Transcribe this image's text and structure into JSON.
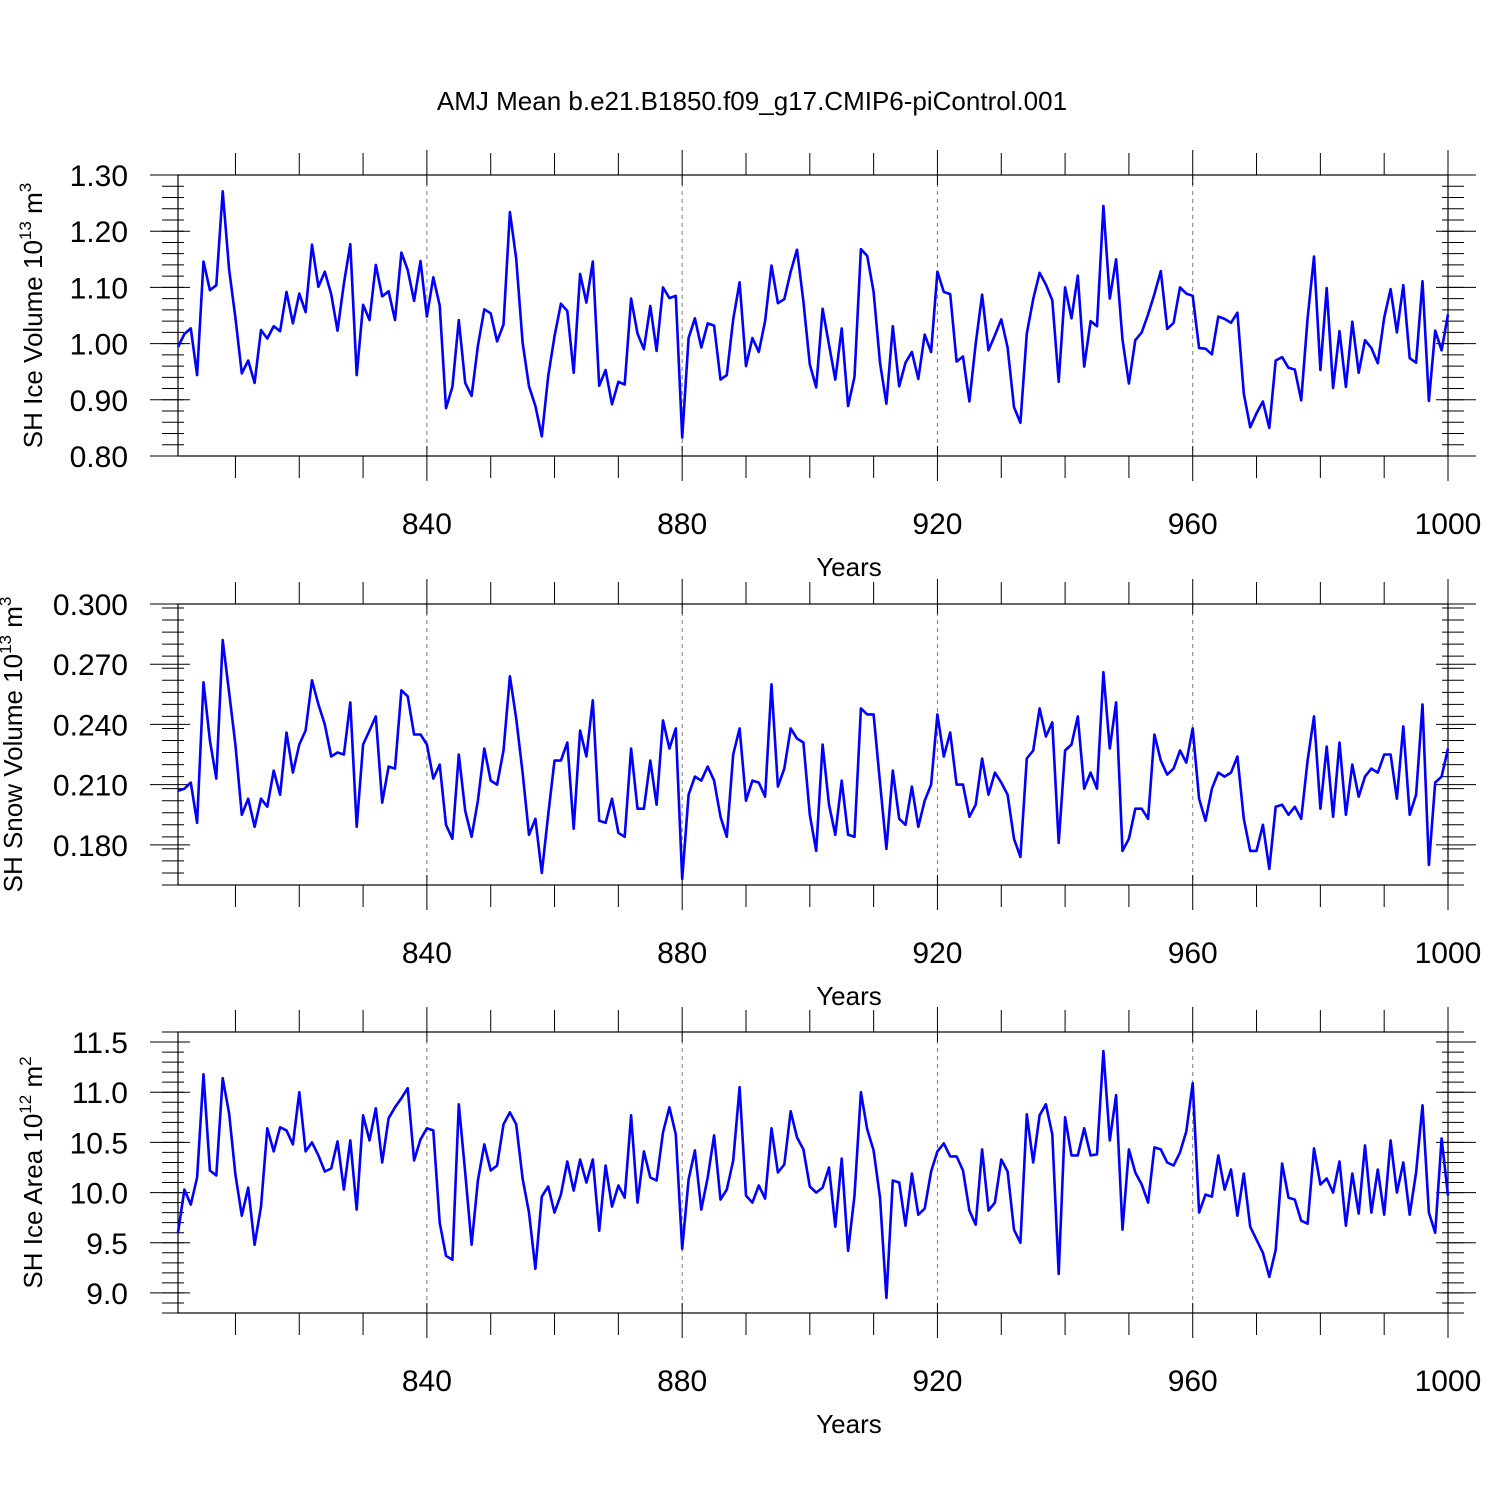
{
  "title": "AMJ Mean b.e21.B1850.f09_g17.CMIP6-piControl.001",
  "line_color": "#0000ff",
  "chart_data": [
    {
      "type": "line",
      "xlabel": "Years",
      "ylabel": "SH Ice Volume 10",
      "ylabel_exp": "13",
      "ylabel_unit": "m",
      "ylabel_unit_exp": "3",
      "xlim": [
        801,
        1000
      ],
      "ylim": [
        0.8,
        1.3
      ],
      "xticks": [
        840,
        880,
        920,
        960,
        1000
      ],
      "yticks": [
        "0.80",
        "0.90",
        "1.00",
        "1.10",
        "1.20",
        "1.30"
      ],
      "grid": "dashed vertical",
      "series": [
        {
          "x_start": 801,
          "x_step": 1,
          "values": [
            0.994,
            1.017,
            1.027,
            0.944,
            1.146,
            1.095,
            1.104,
            1.271,
            1.132,
            1.046,
            0.947,
            0.97,
            0.93,
            1.024,
            1.009,
            1.031,
            1.022,
            1.092,
            1.036,
            1.089,
            1.056,
            1.176,
            1.101,
            1.128,
            1.088,
            1.023,
            1.107,
            1.177,
            0.944,
            1.069,
            1.042,
            1.14,
            1.084,
            1.093,
            1.042,
            1.162,
            1.131,
            1.076,
            1.147,
            1.048,
            1.118,
            1.068,
            0.885,
            0.923,
            1.042,
            0.93,
            0.907,
            0.996,
            1.061,
            1.054,
            1.004,
            1.034,
            1.234,
            1.151,
            1.002,
            0.924,
            0.889,
            0.835,
            0.942,
            1.013,
            1.071,
            1.058,
            0.948,
            1.124,
            1.073,
            1.146,
            0.925,
            0.953,
            0.892,
            0.932,
            0.927,
            1.08,
            1.018,
            0.99,
            1.067,
            0.987,
            1.1,
            1.081,
            1.085,
            0.833,
            1.01,
            1.045,
            0.993,
            1.036,
            1.032,
            0.936,
            0.944,
            1.043,
            1.109,
            0.96,
            1.01,
            0.985,
            1.04,
            1.139,
            1.072,
            1.079,
            1.128,
            1.167,
            1.075,
            0.963,
            0.922,
            1.062,
            0.998,
            0.936,
            1.027,
            0.889,
            0.941,
            1.168,
            1.156,
            1.092,
            0.966,
            0.893,
            1.031,
            0.924,
            0.966,
            0.985,
            0.937,
            1.016,
            0.985,
            1.128,
            1.092,
            1.088,
            0.968,
            0.977,
            0.897,
            1.0,
            1.087,
            0.988,
            1.015,
            1.043,
            0.993,
            0.887,
            0.859,
            1.018,
            1.079,
            1.126,
            1.105,
            1.077,
            0.932,
            1.1,
            1.045,
            1.121,
            0.959,
            1.04,
            1.031,
            1.245,
            1.08,
            1.15,
            1.007,
            0.929,
            1.006,
            1.02,
            1.052,
            1.088,
            1.129,
            1.026,
            1.037,
            1.1,
            1.089,
            1.085,
            0.992,
            0.991,
            0.981,
            1.048,
            1.044,
            1.037,
            1.055,
            0.911,
            0.851,
            0.876,
            0.897,
            0.85,
            0.97,
            0.976,
            0.957,
            0.954,
            0.899,
            1.045,
            1.155,
            0.953,
            1.099,
            0.921,
            1.022,
            0.923,
            1.039,
            0.948,
            1.006,
            0.992,
            0.965,
            1.046,
            1.097,
            1.02,
            1.104,
            0.974,
            0.966,
            1.111,
            0.898,
            1.023,
            0.988,
            1.052
          ]
        }
      ]
    },
    {
      "type": "line",
      "xlabel": "Years",
      "ylabel": "SH Snow Volume 10",
      "ylabel_exp": "13",
      "ylabel_unit": "m",
      "ylabel_unit_exp": "3",
      "xlim": [
        801,
        1000
      ],
      "ylim": [
        0.16,
        0.3
      ],
      "xticks": [
        840,
        880,
        920,
        960,
        1000
      ],
      "yticks": [
        "0.180",
        "0.210",
        "0.240",
        "0.270",
        "0.300"
      ],
      "grid": "dashed vertical",
      "series": [
        {
          "x_start": 801,
          "x_step": 1,
          "values": [
            0.207,
            0.208,
            0.211,
            0.191,
            0.261,
            0.232,
            0.213,
            0.282,
            0.256,
            0.23,
            0.195,
            0.203,
            0.189,
            0.203,
            0.199,
            0.217,
            0.205,
            0.236,
            0.216,
            0.23,
            0.237,
            0.262,
            0.25,
            0.24,
            0.224,
            0.226,
            0.225,
            0.251,
            0.189,
            0.23,
            0.237,
            0.244,
            0.201,
            0.219,
            0.218,
            0.257,
            0.254,
            0.235,
            0.235,
            0.23,
            0.213,
            0.22,
            0.19,
            0.183,
            0.225,
            0.197,
            0.184,
            0.202,
            0.228,
            0.212,
            0.21,
            0.227,
            0.264,
            0.243,
            0.216,
            0.185,
            0.193,
            0.166,
            0.195,
            0.222,
            0.222,
            0.231,
            0.188,
            0.237,
            0.224,
            0.252,
            0.192,
            0.191,
            0.203,
            0.186,
            0.184,
            0.228,
            0.198,
            0.198,
            0.222,
            0.2,
            0.242,
            0.228,
            0.238,
            0.163,
            0.205,
            0.214,
            0.212,
            0.219,
            0.212,
            0.194,
            0.184,
            0.225,
            0.238,
            0.202,
            0.212,
            0.211,
            0.204,
            0.26,
            0.209,
            0.218,
            0.238,
            0.233,
            0.231,
            0.195,
            0.177,
            0.23,
            0.2,
            0.185,
            0.212,
            0.185,
            0.184,
            0.248,
            0.245,
            0.245,
            0.211,
            0.178,
            0.217,
            0.193,
            0.19,
            0.209,
            0.189,
            0.202,
            0.21,
            0.245,
            0.224,
            0.236,
            0.21,
            0.21,
            0.194,
            0.2,
            0.223,
            0.205,
            0.216,
            0.211,
            0.205,
            0.183,
            0.174,
            0.223,
            0.227,
            0.248,
            0.234,
            0.241,
            0.181,
            0.227,
            0.23,
            0.244,
            0.208,
            0.216,
            0.208,
            0.266,
            0.228,
            0.251,
            0.177,
            0.183,
            0.198,
            0.198,
            0.193,
            0.235,
            0.222,
            0.215,
            0.218,
            0.227,
            0.221,
            0.238,
            0.203,
            0.192,
            0.208,
            0.216,
            0.214,
            0.216,
            0.224,
            0.193,
            0.177,
            0.177,
            0.19,
            0.168,
            0.199,
            0.2,
            0.195,
            0.199,
            0.193,
            0.222,
            0.244,
            0.198,
            0.229,
            0.194,
            0.231,
            0.195,
            0.22,
            0.204,
            0.214,
            0.218,
            0.216,
            0.225,
            0.225,
            0.203,
            0.239,
            0.195,
            0.205,
            0.25,
            0.17,
            0.211,
            0.214,
            0.228
          ]
        }
      ]
    },
    {
      "type": "line",
      "xlabel": "Years",
      "ylabel": "SH Ice Area 10",
      "ylabel_exp": "12",
      "ylabel_unit": "m",
      "ylabel_unit_exp": "2",
      "xlim": [
        801,
        1000
      ],
      "ylim": [
        8.8,
        11.6
      ],
      "xticks": [
        840,
        880,
        920,
        960,
        1000
      ],
      "yticks": [
        "9.0",
        "9.5",
        "10.0",
        "10.5",
        "11.0",
        "11.5"
      ],
      "grid": "dashed vertical",
      "series": [
        {
          "x_start": 801,
          "x_step": 1,
          "values": [
            9.6,
            10.03,
            9.88,
            10.15,
            11.18,
            10.22,
            10.17,
            11.14,
            10.79,
            10.18,
            9.77,
            10.05,
            9.48,
            9.86,
            10.64,
            10.41,
            10.65,
            10.62,
            10.48,
            11.0,
            10.41,
            10.5,
            10.37,
            10.21,
            10.24,
            10.51,
            10.03,
            10.52,
            9.83,
            10.77,
            10.52,
            10.84,
            10.3,
            10.74,
            10.85,
            10.94,
            11.04,
            10.32,
            10.53,
            10.64,
            10.62,
            9.7,
            9.37,
            9.33,
            10.88,
            10.2,
            9.48,
            10.12,
            10.48,
            10.22,
            10.27,
            10.68,
            10.8,
            10.68,
            10.14,
            9.8,
            9.24,
            9.96,
            10.06,
            9.8,
            9.98,
            10.31,
            10.02,
            10.33,
            10.1,
            10.33,
            9.62,
            10.27,
            9.86,
            10.07,
            9.95,
            10.77,
            9.9,
            10.41,
            10.15,
            10.12,
            10.6,
            10.85,
            10.58,
            9.44,
            10.13,
            10.42,
            9.83,
            10.15,
            10.57,
            9.93,
            10.03,
            10.32,
            11.05,
            9.97,
            9.9,
            10.07,
            9.94,
            10.64,
            10.2,
            10.28,
            10.81,
            10.55,
            10.43,
            10.06,
            10.0,
            10.05,
            10.25,
            9.66,
            10.34,
            9.42,
            9.97,
            11.0,
            10.63,
            10.42,
            9.95,
            8.95,
            10.12,
            10.1,
            9.67,
            10.19,
            9.78,
            9.84,
            10.21,
            10.41,
            10.49,
            10.36,
            10.36,
            10.22,
            9.82,
            9.68,
            10.43,
            9.82,
            9.9,
            10.33,
            10.21,
            9.63,
            9.5,
            10.78,
            10.3,
            10.77,
            10.88,
            10.58,
            9.19,
            10.75,
            10.37,
            10.37,
            10.64,
            10.37,
            10.38,
            11.41,
            10.52,
            10.97,
            9.63,
            10.43,
            10.2,
            10.08,
            9.9,
            10.45,
            10.43,
            10.3,
            10.27,
            10.4,
            10.61,
            11.09,
            9.8,
            9.98,
            9.96,
            10.37,
            10.03,
            10.23,
            9.77,
            10.19,
            9.66,
            9.53,
            9.4,
            9.16,
            9.43,
            10.29,
            9.95,
            9.93,
            9.72,
            9.69,
            10.44,
            10.08,
            10.14,
            10.0,
            10.31,
            9.67,
            10.19,
            9.79,
            10.47,
            9.8,
            10.23,
            9.78,
            10.52,
            10.0,
            10.3,
            9.78,
            10.2,
            10.87,
            9.8,
            9.6,
            10.54,
            9.97
          ]
        }
      ]
    }
  ]
}
